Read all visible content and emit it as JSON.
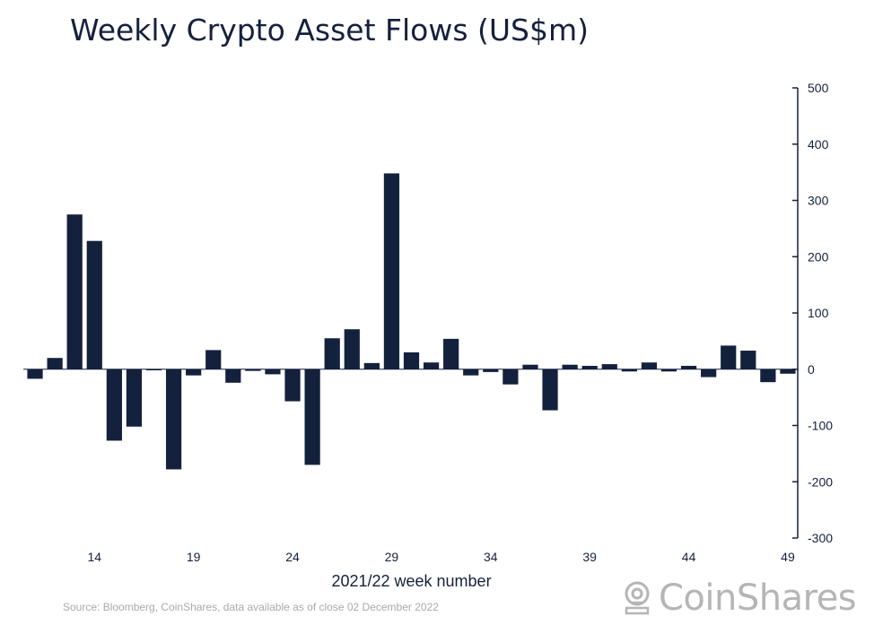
{
  "title": "Weekly Crypto Asset Flows (US$m)",
  "source": "Source: Bloomberg, CoinShares, data available as of close 02 December 2022",
  "brand": {
    "name": "CoinShares",
    "mark_icon": "coinshares-logo-icon"
  },
  "colors": {
    "bar": "#14213d",
    "axis": "#14213d",
    "text": "#14213d",
    "muted": "#a9a9a9"
  },
  "chart_data": {
    "type": "bar",
    "title": "Weekly Crypto Asset Flows (US$m)",
    "xlabel": "2021/22 week number",
    "ylabel": "",
    "ylim": [
      -300,
      500
    ],
    "yticks": [
      500,
      400,
      300,
      200,
      100,
      0,
      -100,
      -200,
      -300
    ],
    "ytick_labels": [
      "500",
      "400",
      "300",
      "200",
      "100",
      "0",
      "-100",
      "-200",
      "-300"
    ],
    "xtick_labels": [
      "14",
      "19",
      "24",
      "29",
      "34",
      "39",
      "44",
      "49"
    ],
    "xtick_positions": [
      14,
      19,
      24,
      29,
      34,
      39,
      44,
      49
    ],
    "categories": [
      11,
      12,
      13,
      14,
      15,
      16,
      17,
      18,
      19,
      20,
      21,
      22,
      23,
      24,
      25,
      26,
      27,
      28,
      29,
      30,
      31,
      32,
      33,
      34,
      35,
      36,
      37,
      38,
      39,
      40,
      41,
      42,
      43,
      44,
      45,
      46,
      47,
      48,
      49
    ],
    "values": [
      -17,
      20,
      275,
      228,
      -127,
      -102,
      -2,
      -178,
      -11,
      34,
      -24,
      -3,
      -9,
      -57,
      -170,
      55,
      71,
      11,
      348,
      30,
      12,
      54,
      -11,
      -5,
      -27,
      8,
      -73,
      8,
      6,
      9,
      -4,
      12,
      -4,
      6,
      -14,
      42,
      33,
      -23,
      -8
    ],
    "grid": false,
    "legend": "none",
    "yaxis_side": "right"
  }
}
